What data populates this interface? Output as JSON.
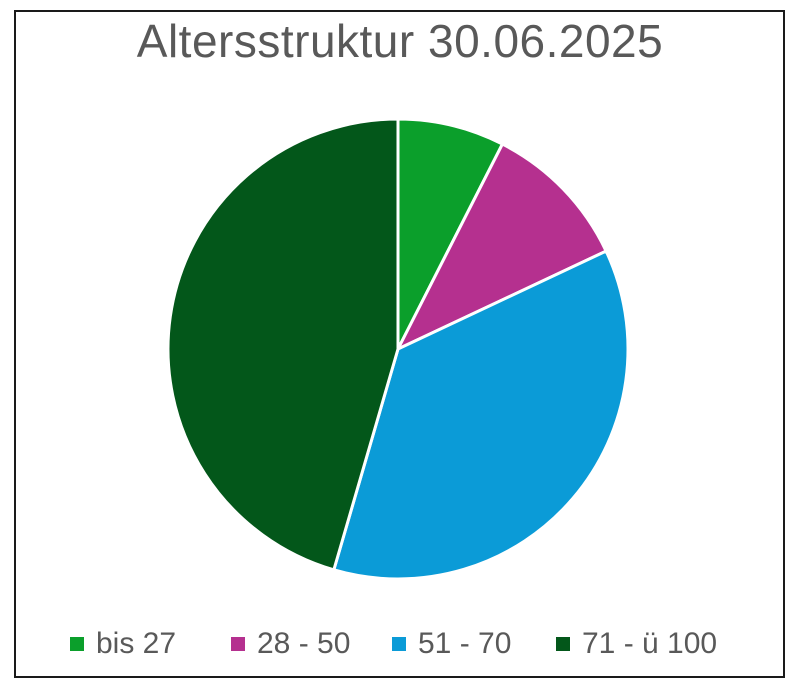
{
  "chart_data": {
    "type": "pie",
    "title": "Altersstruktur 30.06.2025",
    "categories": [
      "bis 27",
      "28 - 50",
      "51 - 70",
      "71 - ü 100"
    ],
    "values": [
      7.5,
      10.5,
      36.5,
      45.5
    ],
    "unit": "%",
    "colors": [
      "#0b9f2b",
      "#b5308f",
      "#0b9bd7",
      "#03571a"
    ],
    "legend": "bottom",
    "start_angle_deg": 0,
    "direction": "clockwise"
  }
}
